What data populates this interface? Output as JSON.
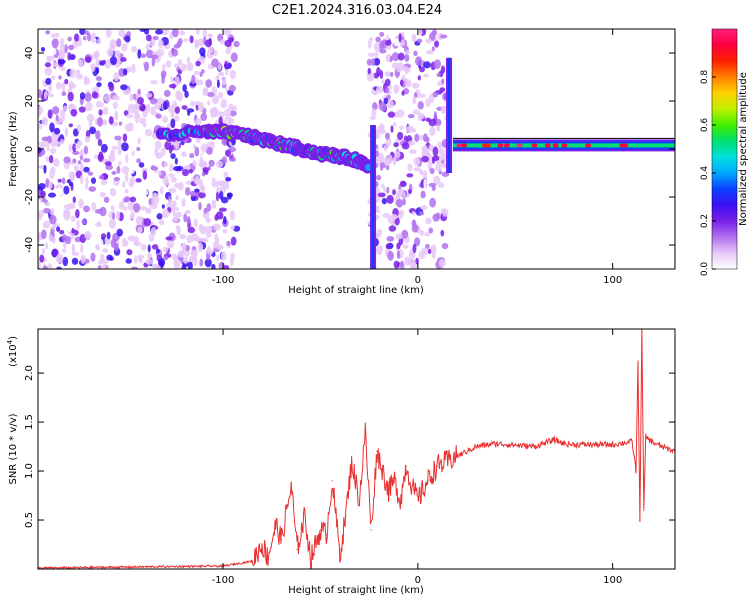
{
  "title": "C2E1.2024.316.03.04.E24",
  "chart_data": [
    {
      "type": "heatmap",
      "xlabel": "Height of straight line (km)",
      "ylabel": "Frequency (Hz)",
      "xlim": [
        -195,
        132
      ],
      "ylim": [
        -50,
        50
      ],
      "x_ticks": [
        -100,
        0,
        100
      ],
      "y_ticks": [
        -40,
        -20,
        0,
        20,
        40
      ],
      "colorbar": {
        "label": "Normalized spectral amplitude",
        "range": [
          0,
          1
        ],
        "ticks": [
          "0.0",
          "0.2",
          "0.4",
          "0.6",
          "0.8"
        ],
        "colors": [
          "#ffffff",
          "#e8c8f8",
          "#b070f0",
          "#7a1fe8",
          "#3a10f0",
          "#0a40ff",
          "#00a8ff",
          "#00e0e0",
          "#00e070",
          "#40f000",
          "#c0f000",
          "#ffd000",
          "#ff8000",
          "#ff2000",
          "#ff0040",
          "#ff2080"
        ]
      },
      "noise_regions": [
        {
          "x_range": [
            -195,
            -93
          ],
          "y_range": [
            -50,
            50
          ],
          "level": 0.2
        },
        {
          "x_range": [
            -25,
            15
          ],
          "y_range": [
            -50,
            50
          ],
          "level": 0.15
        }
      ],
      "signal_track": {
        "x": [
          -132,
          -110,
          -100,
          -90,
          -80,
          -70,
          -60,
          -50,
          -40,
          -30,
          -25
        ],
        "freq_hz": [
          6,
          7,
          7,
          6,
          4,
          2,
          0,
          -2,
          -3,
          -5,
          -7
        ],
        "amplitude": [
          0.35,
          0.45,
          0.6,
          0.5,
          0.45,
          0.55,
          0.4,
          0.45,
          0.5,
          0.4,
          0.3
        ]
      },
      "stable_line": {
        "x_range": [
          18,
          132
        ],
        "freq_hz": 1.5,
        "amplitude": 0.4
      },
      "spikes": [
        {
          "x": -23,
          "f_from": -50,
          "f_to": 10
        },
        {
          "x": 16,
          "f_from": -10,
          "f_to": 38
        }
      ]
    },
    {
      "type": "line",
      "xlabel": "Height of straight line (km)",
      "ylabel": "SNR (10 * v/v)",
      "y_scale_label": "(x10",
      "y_scale_exponent": "4",
      "xlim": [
        -195,
        132
      ],
      "ylim": [
        0,
        2.45
      ],
      "x_ticks": [
        -100,
        0,
        100
      ],
      "y_ticks": [
        "0.5",
        "1.0",
        "1.5",
        "2.0"
      ],
      "color": "#e83030",
      "series": [
        {
          "x": [
            -195,
            -150,
            -100,
            -85,
            -80,
            -77,
            -73,
            -70,
            -65,
            -62,
            -58,
            -55,
            -50,
            -47,
            -44,
            -40,
            -37,
            -34,
            -30,
            -27,
            -24,
            -21,
            -18,
            -15,
            -12,
            -9,
            -6,
            -3,
            0,
            5,
            10,
            20,
            30,
            40,
            60,
            70,
            75,
            80,
            100,
            110,
            112,
            113,
            114,
            115,
            116,
            117,
            120,
            125,
            132
          ],
          "y": [
            0.01,
            0.02,
            0.03,
            0.08,
            0.25,
            0.12,
            0.45,
            0.3,
            0.85,
            0.2,
            0.55,
            0.1,
            0.4,
            0.35,
            0.9,
            0.15,
            0.55,
            1.1,
            0.7,
            1.4,
            0.4,
            1.2,
            1.0,
            0.8,
            0.9,
            0.7,
            1.05,
            0.85,
            0.7,
            0.9,
            1.05,
            1.15,
            1.25,
            1.28,
            1.25,
            1.32,
            1.28,
            1.27,
            1.27,
            1.3,
            1.0,
            2.1,
            0.5,
            2.45,
            0.6,
            1.35,
            1.3,
            1.25,
            1.2
          ]
        }
      ]
    }
  ]
}
